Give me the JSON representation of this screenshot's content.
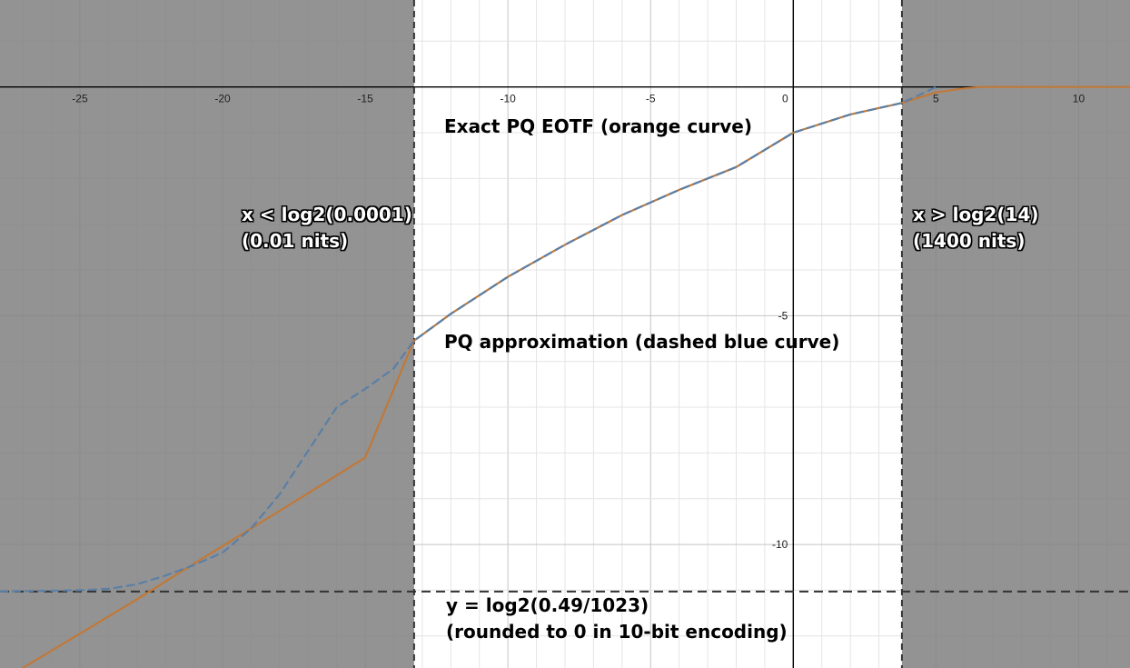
{
  "chart_data": {
    "type": "line",
    "xlim": [
      -27.8,
      11.8
    ],
    "ylim": [
      -12.7,
      1.9
    ],
    "grid": true,
    "x_ticks": [
      -25,
      -20,
      -15,
      -10,
      -5,
      0,
      5,
      10
    ],
    "y_ticks": [
      -5,
      -10
    ],
    "shaded_regions": [
      {
        "x_from": -27.8,
        "x_to": -13.288
      },
      {
        "x_from": 3.807,
        "x_to": 11.8
      }
    ],
    "vertical_lines": [
      -13.288,
      3.807
    ],
    "horizontal_line": -11.028,
    "series": [
      {
        "color": "#c0793a",
        "style": "solid",
        "x": [
          -27.0,
          -25.0,
          -23.0,
          -21.0,
          -19.0,
          -17.0,
          -15.0,
          -13.3,
          -12.0,
          -10.0,
          -8.0,
          -6.0,
          -4.0,
          -2.0,
          0.0,
          2.0,
          3.8,
          5.0,
          6.0,
          6.6,
          8.0,
          10.0,
          11.8
        ],
        "y": [
          -12.7,
          -11.95,
          -11.2,
          -10.42,
          -9.65,
          -8.88,
          -8.1,
          -5.55,
          -4.96,
          -4.15,
          -3.45,
          -2.8,
          -2.25,
          -1.75,
          -1.0,
          -0.6,
          -0.35,
          -0.12,
          -0.03,
          0.0,
          0.0,
          0.0,
          0.0
        ]
      },
      {
        "color": "#5b7fa6",
        "style": "dashed",
        "x": [
          -27.8,
          -25.0,
          -24.0,
          -23.0,
          -22.0,
          -21.0,
          -20.0,
          -19.0,
          -18.0,
          -17.0,
          -16.0,
          -15.0,
          -14.0,
          -13.3,
          -12.0,
          -10.0,
          -8.0,
          -6.0,
          -4.0,
          -2.0,
          0.0,
          2.0,
          3.8,
          4.5,
          5.0
        ],
        "y": [
          -11.03,
          -11.0,
          -10.97,
          -10.87,
          -10.68,
          -10.45,
          -10.18,
          -9.65,
          -8.9,
          -7.95,
          -7.0,
          -6.6,
          -6.15,
          -5.55,
          -4.96,
          -4.15,
          -3.45,
          -2.8,
          -2.25,
          -1.75,
          -1.0,
          -0.6,
          -0.35,
          -0.15,
          0.0
        ]
      }
    ],
    "annotations": {
      "exact": "Exact PQ EOTF (orange curve)",
      "approx": "PQ approximation (dashed blue curve)",
      "left_line1": "x < log2(0.0001)",
      "left_line2": "(0.01 nits)",
      "right_line1": "x > log2(14)",
      "right_line2": "(1400 nits)",
      "bottom_line1": "y = log2(0.49/1023)",
      "bottom_line2": "(rounded to 0 in 10-bit encoding)"
    },
    "colors": {
      "shade": "#808080",
      "grid_minor": "#e4e4e4",
      "grid_major": "#c4c4c4",
      "axis": "#000000",
      "guide": "#333333"
    }
  }
}
